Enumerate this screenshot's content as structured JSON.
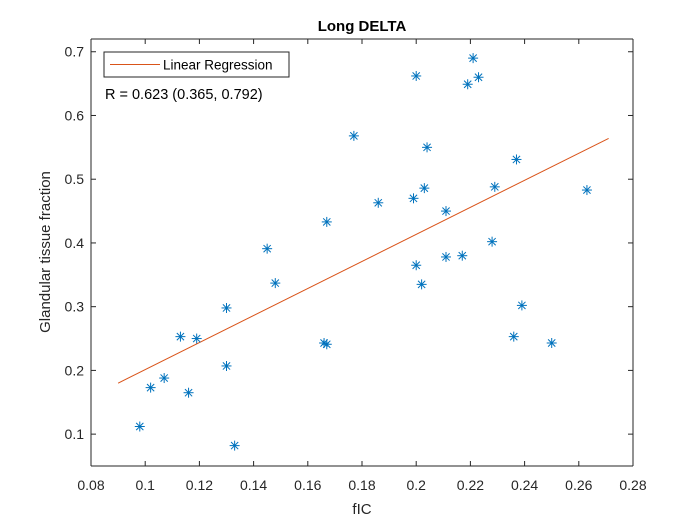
{
  "chart_data": {
    "type": "scatter",
    "title": "Long DELTA",
    "xlabel": "fIC",
    "ylabel": "Glandular tissue fraction",
    "xlim": [
      0.08,
      0.28
    ],
    "ylim": [
      0.05,
      0.72
    ],
    "xticks": [
      "0.08",
      "0.1",
      "0.12",
      "0.14",
      "0.16",
      "0.18",
      "0.2",
      "0.22",
      "0.24",
      "0.26",
      "0.28"
    ],
    "yticks": [
      "0.1",
      "0.2",
      "0.3",
      "0.4",
      "0.5",
      "0.6",
      "0.7"
    ],
    "grid": false,
    "legend_position": "top-left",
    "annotation": "R = 0.623 (0.365, 0.792)",
    "series": [
      {
        "marker": "asterisk",
        "color": "#0072BD",
        "points": [
          [
            0.098,
            0.112
          ],
          [
            0.102,
            0.173
          ],
          [
            0.107,
            0.188
          ],
          [
            0.113,
            0.253
          ],
          [
            0.116,
            0.165
          ],
          [
            0.119,
            0.25
          ],
          [
            0.13,
            0.298
          ],
          [
            0.13,
            0.207
          ],
          [
            0.133,
            0.082
          ],
          [
            0.145,
            0.391
          ],
          [
            0.148,
            0.337
          ],
          [
            0.166,
            0.243
          ],
          [
            0.167,
            0.241
          ],
          [
            0.167,
            0.433
          ],
          [
            0.177,
            0.568
          ],
          [
            0.186,
            0.463
          ],
          [
            0.199,
            0.47
          ],
          [
            0.2,
            0.662
          ],
          [
            0.2,
            0.365
          ],
          [
            0.202,
            0.335
          ],
          [
            0.203,
            0.486
          ],
          [
            0.204,
            0.55
          ],
          [
            0.211,
            0.45
          ],
          [
            0.211,
            0.378
          ],
          [
            0.217,
            0.38
          ],
          [
            0.219,
            0.649
          ],
          [
            0.221,
            0.69
          ],
          [
            0.223,
            0.66
          ],
          [
            0.228,
            0.402
          ],
          [
            0.229,
            0.488
          ],
          [
            0.236,
            0.253
          ],
          [
            0.237,
            0.531
          ],
          [
            0.239,
            0.302
          ],
          [
            0.25,
            0.243
          ],
          [
            0.263,
            0.483
          ]
        ]
      },
      {
        "name": "Linear Regression",
        "type": "line",
        "color": "#D95319",
        "points": [
          [
            0.09,
            0.18
          ],
          [
            0.271,
            0.564
          ]
        ]
      }
    ]
  }
}
